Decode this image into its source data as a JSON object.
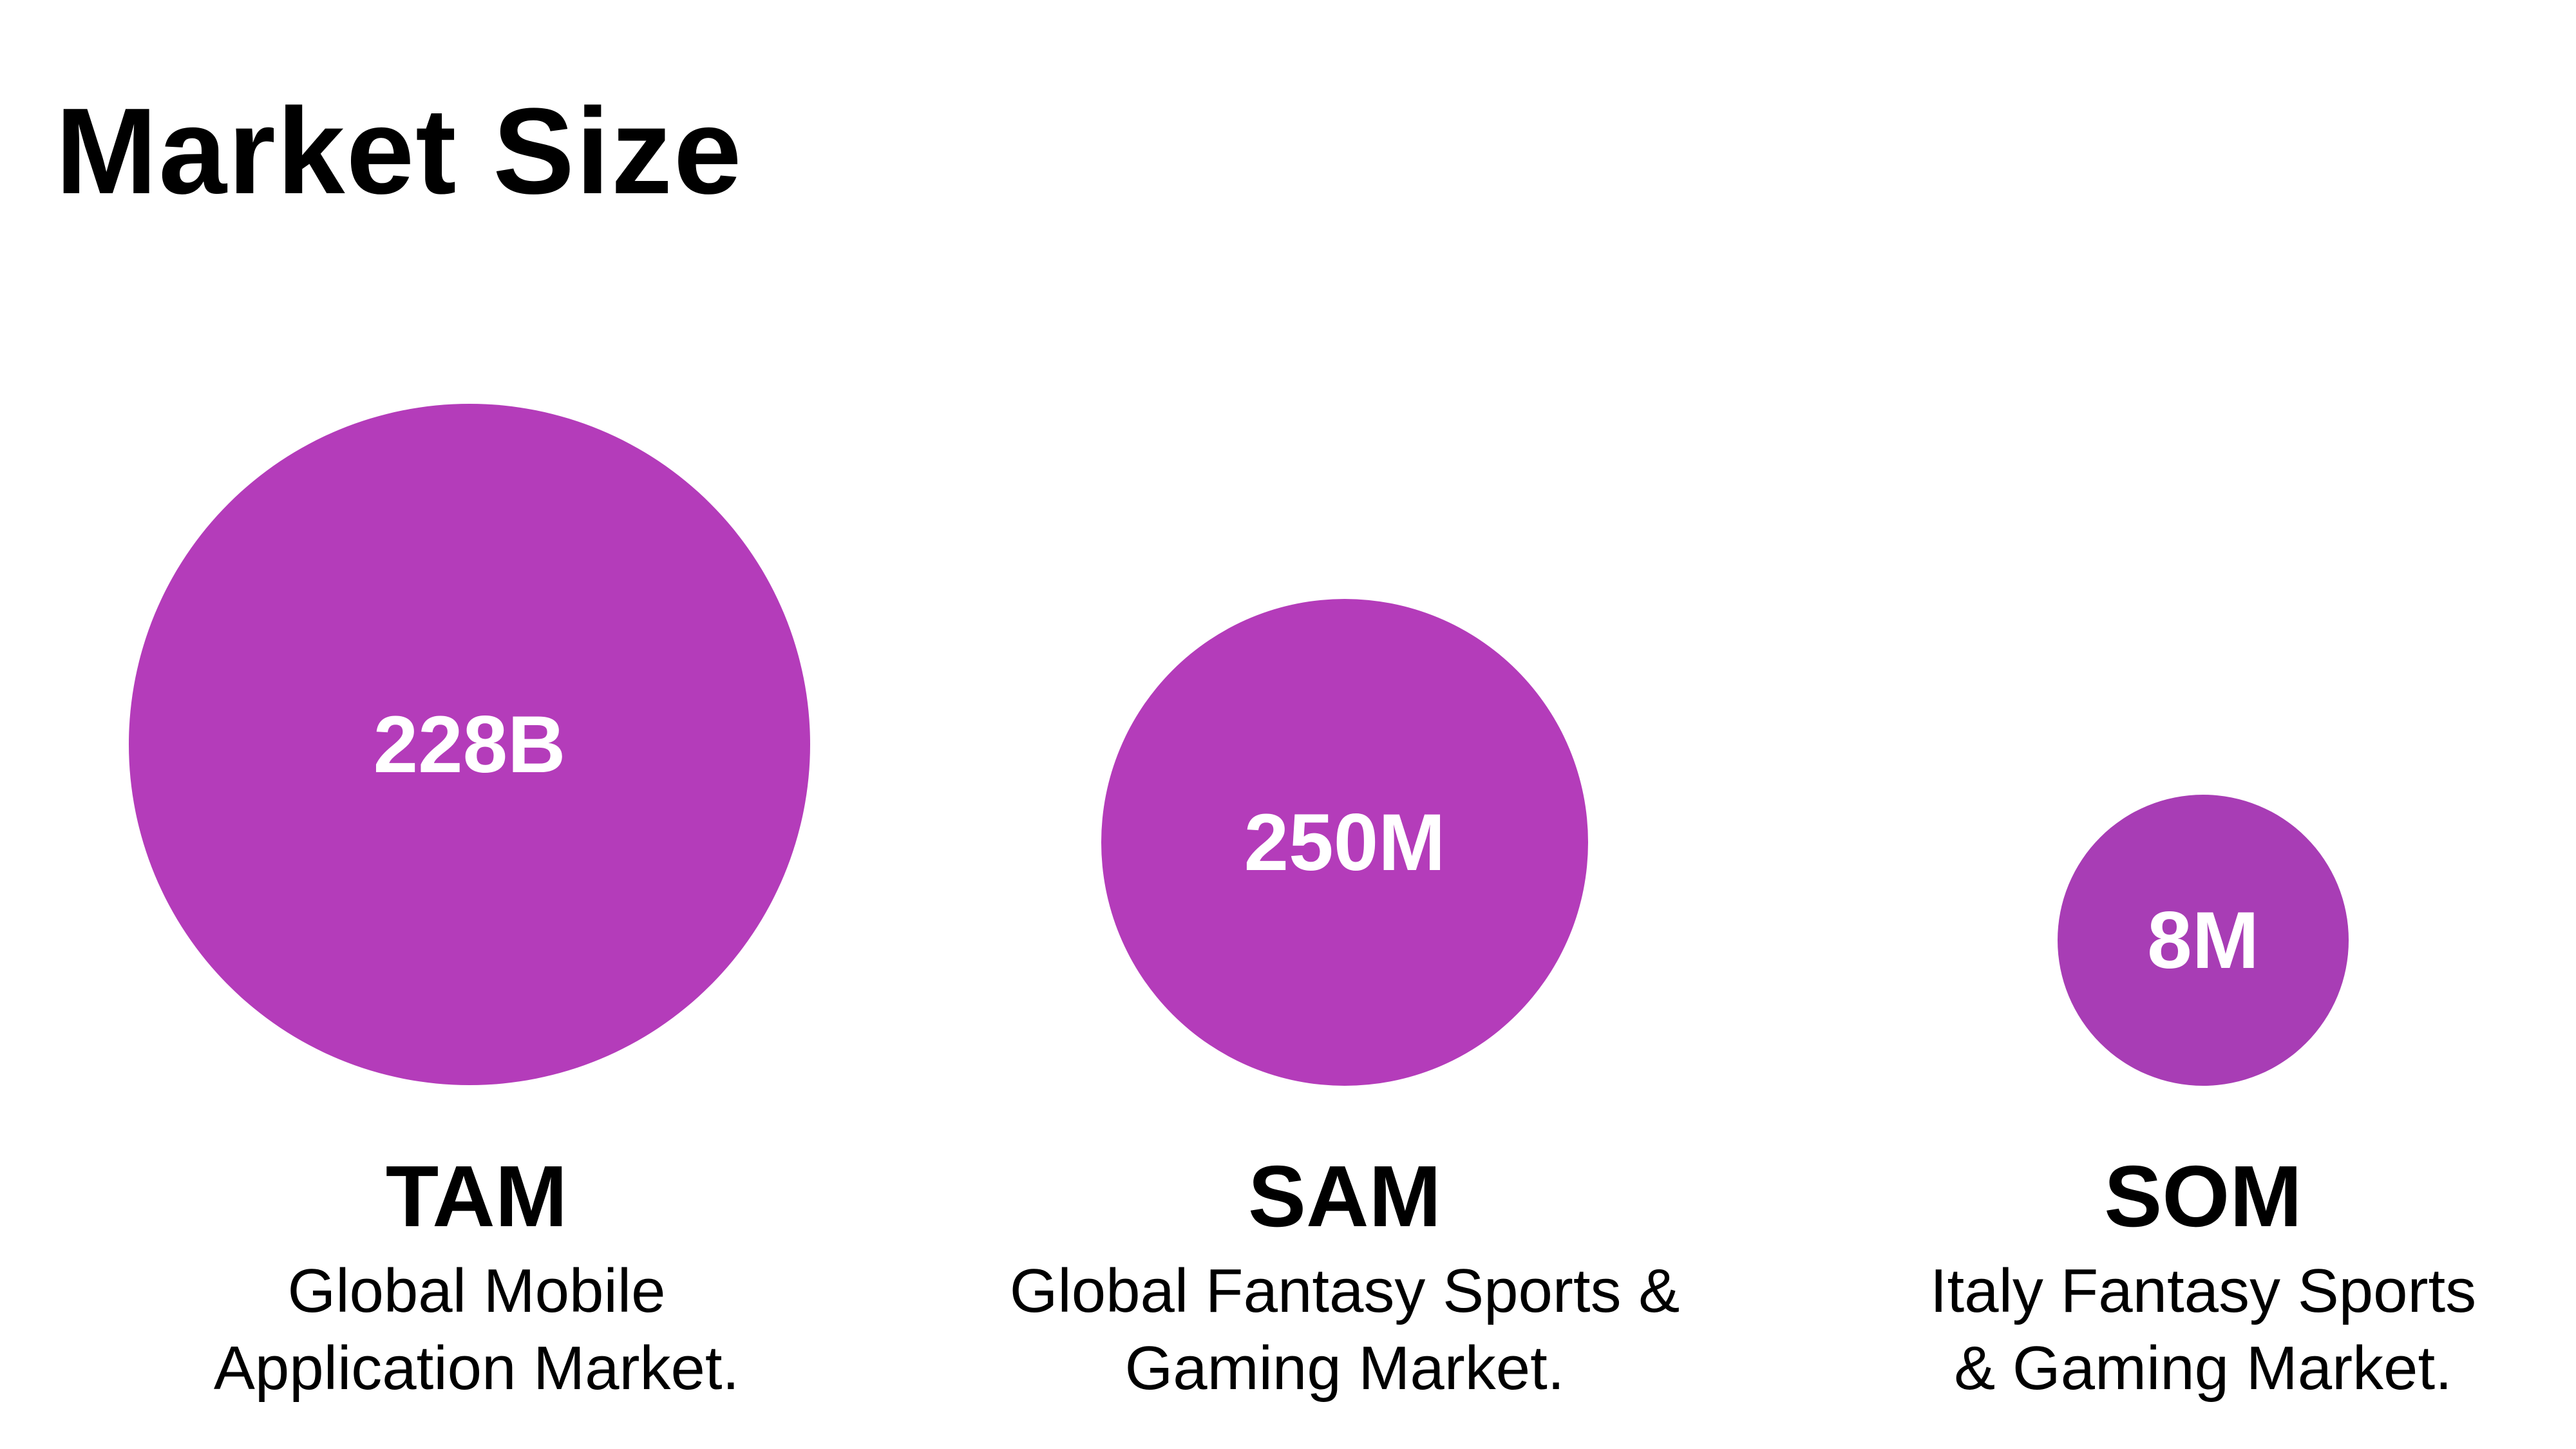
{
  "title": "Market Size",
  "colors": {
    "circle_fill": "#b43cba",
    "circle_fill_small": "#a83db5",
    "circle_text": "#ffffff"
  },
  "markets": [
    {
      "label": "TAM",
      "value": "228B",
      "description": "Global Mobile\nApplication Market."
    },
    {
      "label": "SAM",
      "value": "250M",
      "description": "Global Fantasy Sports &\nGaming Market."
    },
    {
      "label": "SOM",
      "value": "8M",
      "description": "Italy Fantasy Sports\n& Gaming Market."
    }
  ]
}
